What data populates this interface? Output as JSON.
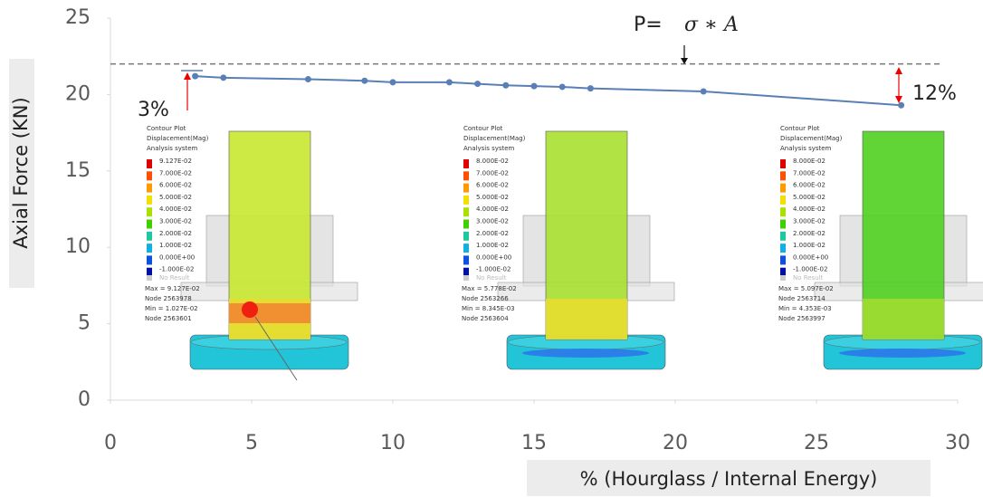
{
  "chart_data": {
    "type": "line",
    "y_label": "Axial Force (KN)",
    "x_label": "% (Hourglass / Internal Energy)",
    "xlim": [
      0,
      30
    ],
    "xticks": [
      0,
      5,
      10,
      15,
      20,
      25,
      30
    ],
    "ylim": [
      0,
      25
    ],
    "yticks": [
      0,
      5,
      10,
      15,
      20,
      25
    ],
    "grid": false,
    "series": [
      {
        "color": "#5a7fb6",
        "x": [
          3,
          4,
          7,
          9,
          10,
          12,
          13,
          14,
          15,
          16,
          17,
          21,
          28
        ],
        "values": [
          21.2,
          21.1,
          21.0,
          20.9,
          20.8,
          20.8,
          20.7,
          20.6,
          20.55,
          20.5,
          20.4,
          20.2,
          19.3
        ]
      }
    ],
    "reference_line": {
      "value": 22,
      "color": "#777777"
    },
    "annotations": {
      "force_label": "P=",
      "force_formula": "σ ∗ A",
      "left_gap": "3%",
      "right_gap": "12%"
    },
    "legend_colors": [
      "#e00000",
      "#ff5000",
      "#ff9a00",
      "#f2e000",
      "#a8e000",
      "#40d000",
      "#20c8a0",
      "#10b0e0",
      "#1050e0",
      "#0010a0"
    ],
    "insets": [
      {
        "title": [
          "Contour Plot",
          "Displacement(Mag)",
          "Analysis system"
        ],
        "levels": [
          "9.127E-02",
          "7.000E-02",
          "6.000E-02",
          "5.000E-02",
          "4.000E-02",
          "3.000E-02",
          "2.000E-02",
          "1.000E-02",
          "0.000E+00",
          "-1.000E-02"
        ],
        "no_result": "No Result",
        "stats": [
          "Max = 9.127E-02",
          "Node 2563978",
          "Min = 1.027E-02",
          "Node 2563601"
        ]
      },
      {
        "title": [
          "Contour Plot",
          "Displacement(Mag)",
          "Analysis system"
        ],
        "levels": [
          "8.000E-02",
          "7.000E-02",
          "6.000E-02",
          "5.000E-02",
          "4.000E-02",
          "3.000E-02",
          "2.000E-02",
          "1.000E-02",
          "0.000E+00",
          "-1.000E-02"
        ],
        "no_result": "No Result",
        "stats": [
          "Max = 5.778E-02",
          "Node 2563266",
          "Min = 8.345E-03",
          "Node 2563604"
        ]
      },
      {
        "title": [
          "Contour Plot",
          "Displacement(Mag)",
          "Analysis system"
        ],
        "levels": [
          "8.000E-02",
          "7.000E-02",
          "6.000E-02",
          "5.000E-02",
          "4.000E-02",
          "3.000E-02",
          "2.000E-02",
          "1.000E-02",
          "0.000E+00",
          "-1.000E-02"
        ],
        "no_result": "No Result",
        "stats": [
          "Max = 5.097E-02",
          "Node 2563714",
          "Min = 4.353E-03",
          "Node 2563997"
        ]
      }
    ]
  }
}
